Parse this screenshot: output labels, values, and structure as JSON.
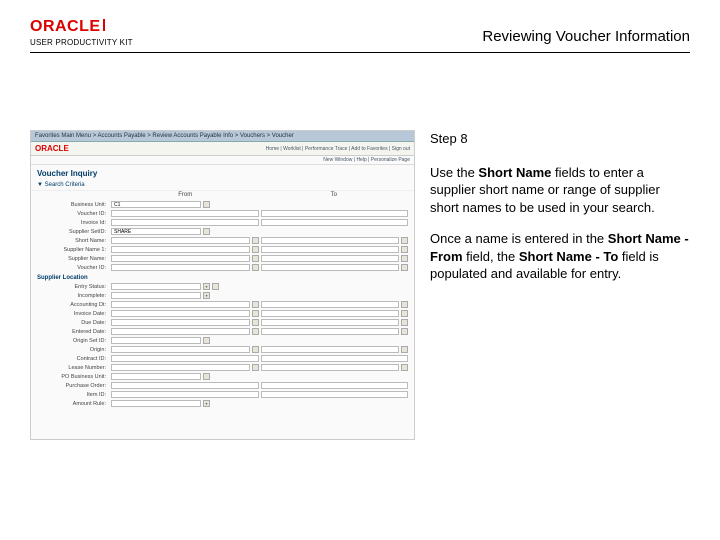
{
  "header": {
    "logo_text": "ORACLE",
    "logo_sub": "USER PRODUCTIVITY KIT",
    "title": "Reviewing Voucher Information"
  },
  "instructions": {
    "step_label": "Step 8",
    "para1_a": "Use the ",
    "para1_b": "Short Name",
    "para1_c": " fields to enter a supplier short name or range of supplier short names to be used in your search.",
    "para2_a": "Once a name is entered in the ",
    "para2_b": "Short Name - From",
    "para2_c": " field, the ",
    "para2_d": "Short Name - To",
    "para2_e": " field is populated and available for entry."
  },
  "screenshot": {
    "menubar": "Favorites    Main Menu  >  Accounts Payable  >  Review Accounts Payable Info  >  Vouchers  >  Voucher",
    "oracle": "ORACLE",
    "toplinks": "Home | Worklist | Performance Trace | Add to Favorites | Sign out",
    "subbar": "New Window | Help | Personalize Page",
    "heading": "Voucher Inquiry",
    "section": "▼ Search Criteria",
    "from": "From",
    "to": "To",
    "rows1": [
      {
        "label": "Business Unit:",
        "val": "C1",
        "icons": 1,
        "two": false
      },
      {
        "label": "Voucher ID:",
        "two": true,
        "icons": 0
      },
      {
        "label": "Invoice Id:",
        "two": true,
        "icons": 0
      },
      {
        "label": "Supplier SetID:",
        "val": "SHARE",
        "icons": 1,
        "two": false
      },
      {
        "label": "Short Name:",
        "two": true,
        "icons": 2
      },
      {
        "label": "Supplier Name 1:",
        "two": true,
        "icons": 2
      },
      {
        "label": "Supplier Name:",
        "two": true,
        "icons": 2
      },
      {
        "label": "Voucher ID:",
        "two": true,
        "icons": 2
      }
    ],
    "subhead": "Supplier Location",
    "rows2": [
      {
        "label": "Entry Status:",
        "icons": 1,
        "dropdown": true,
        "two": false
      },
      {
        "label": "Incomplete:",
        "dropdown": true,
        "two": false
      },
      {
        "label": "Accounting Dt:",
        "two": true,
        "icons": 2
      },
      {
        "label": "Invoice Date:",
        "two": true,
        "icons": 2
      },
      {
        "label": "Due Date:",
        "two": true,
        "icons": 2
      },
      {
        "label": "Entered Date:",
        "two": true,
        "icons": 2
      },
      {
        "label": "Origin Set ID:",
        "icons": 1,
        "two": false
      },
      {
        "label": "Origin:",
        "two": true,
        "icons": 2
      },
      {
        "label": "Contract ID:",
        "two": true,
        "icons": 0
      },
      {
        "label": "Lease Number:",
        "two": true,
        "icons": 2
      },
      {
        "label": "PO Business Unit:",
        "icons": 1,
        "two": false
      },
      {
        "label": "Purchase Order:",
        "two": true,
        "icons": 0
      },
      {
        "label": "Item ID:",
        "two": true,
        "icons": 0
      },
      {
        "label": "Amount Rule:",
        "dropdown": true,
        "two": false
      }
    ]
  }
}
